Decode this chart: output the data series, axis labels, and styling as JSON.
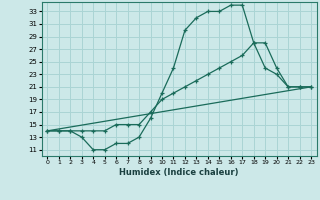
{
  "xlabel": "Humidex (Indice chaleur)",
  "bg_color": "#cce8e8",
  "grid_color": "#aad4d4",
  "line_color": "#1a6b5a",
  "xlim": [
    -0.5,
    23.5
  ],
  "ylim": [
    10.0,
    34.5
  ],
  "yticks": [
    11,
    13,
    15,
    17,
    19,
    21,
    23,
    25,
    27,
    29,
    31,
    33
  ],
  "xticks": [
    0,
    1,
    2,
    3,
    4,
    5,
    6,
    7,
    8,
    9,
    10,
    11,
    12,
    13,
    14,
    15,
    16,
    17,
    18,
    19,
    20,
    21,
    22,
    23
  ],
  "series1_x": [
    0,
    1,
    2,
    3,
    4,
    5,
    6,
    7,
    8,
    9,
    10,
    11,
    12,
    13,
    14,
    15,
    16,
    17,
    18,
    19,
    20,
    21,
    22,
    23
  ],
  "series1_y": [
    14,
    14,
    14,
    13,
    11,
    11,
    12,
    12,
    13,
    16,
    20,
    24,
    30,
    32,
    33,
    33,
    34,
    34,
    28,
    24,
    23,
    21,
    21,
    21
  ],
  "series2_x": [
    0,
    1,
    2,
    3,
    4,
    5,
    6,
    7,
    8,
    9,
    10,
    11,
    12,
    13,
    14,
    15,
    16,
    17,
    18,
    19,
    20,
    21,
    22,
    23
  ],
  "series2_y": [
    14,
    14,
    14,
    14,
    14,
    14,
    15,
    15,
    15,
    17,
    19,
    20,
    21,
    22,
    23,
    24,
    25,
    26,
    28,
    28,
    24,
    21,
    21,
    21
  ],
  "series3_x": [
    0,
    23
  ],
  "series3_y": [
    14,
    21
  ]
}
